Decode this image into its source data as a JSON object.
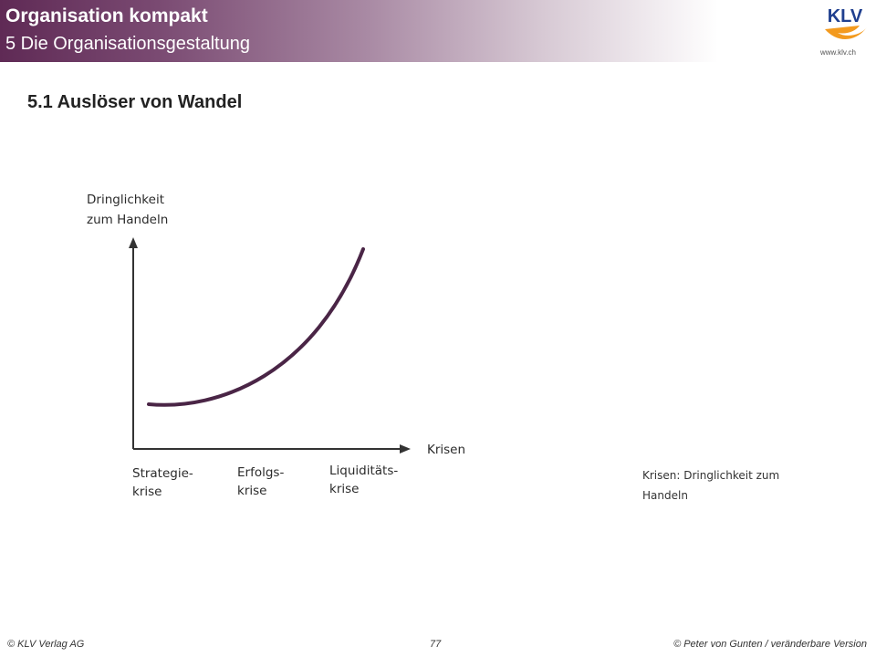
{
  "header": {
    "title": "Organisation kompakt",
    "subtitle": "5 Die Organisationsgestaltung",
    "logo_text": "KLV",
    "logo_url": "www.klv.ch"
  },
  "section": {
    "title": "5.1 Auslöser von Wandel"
  },
  "diagram": {
    "y_label_line1": "Dringlichkeit",
    "y_label_line2": "zum Handeln",
    "x_label": "Krisen",
    "categories": [
      {
        "line1": "Strategie-",
        "line2": "krise"
      },
      {
        "line1": "Erfolgs-",
        "line2": "krise"
      },
      {
        "line1": "Liquiditäts-",
        "line2": "krise"
      }
    ],
    "curve_color": "#4a2546",
    "axis_color": "#333333"
  },
  "caption": {
    "line1": "Krisen: Dringlichkeit zum",
    "line2": "Handeln"
  },
  "footer": {
    "left": "© KLV Verlag AG",
    "page": "77",
    "right": "© Peter von Gunten / veränderbare Version"
  },
  "colors": {
    "header_start": "#5f2a55",
    "logo_orange": "#f39a1e"
  }
}
